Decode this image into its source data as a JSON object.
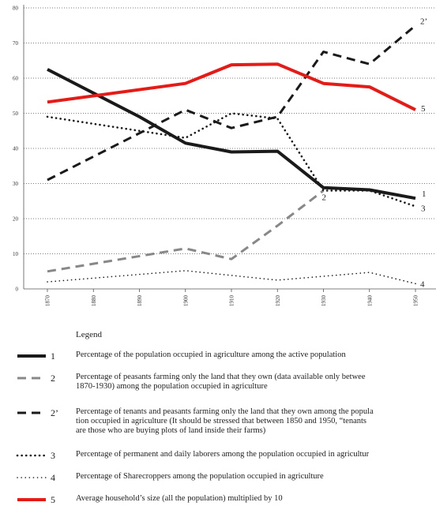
{
  "chart_data": {
    "type": "line",
    "x": [
      1870,
      1880,
      1890,
      1900,
      1910,
      1920,
      1930,
      1940,
      1950
    ],
    "xticks": [
      "1870",
      "1880",
      "1890",
      "1900",
      "1910",
      "1920",
      "1930",
      "1940",
      "1950"
    ],
    "yticks": [
      "0",
      "10",
      "20",
      "30",
      "40",
      "50",
      "60",
      "70",
      "80"
    ],
    "ylim": [
      0,
      80
    ],
    "grid": "horizontal dotted",
    "series": [
      {
        "id": "1",
        "end_label": "1",
        "color": "#1a1a1a",
        "style": "solid-thick",
        "points": [
          [
            1870,
            62.5
          ],
          [
            1890,
            49
          ],
          [
            1900,
            41.5
          ],
          [
            1910,
            39
          ],
          [
            1920,
            39.2
          ],
          [
            1930,
            28.8
          ],
          [
            1940,
            28.2
          ],
          [
            1950,
            25.8
          ]
        ]
      },
      {
        "id": "2",
        "end_label": "2",
        "color": "#888888",
        "style": "dashed-gray",
        "points": [
          [
            1870,
            5
          ],
          [
            1900,
            11.5
          ],
          [
            1910,
            8.5
          ],
          [
            1920,
            18
          ],
          [
            1930,
            28
          ]
        ]
      },
      {
        "id": "2p",
        "end_label": "2’",
        "color": "#1a1a1a",
        "style": "dashed",
        "points": [
          [
            1870,
            31
          ],
          [
            1900,
            51
          ],
          [
            1910,
            45.8
          ],
          [
            1920,
            49
          ],
          [
            1930,
            67.5
          ],
          [
            1940,
            64
          ],
          [
            1950,
            75
          ]
        ]
      },
      {
        "id": "3",
        "end_label": "3",
        "color": "#1a1a1a",
        "style": "dotted-thick",
        "points": [
          [
            1870,
            49
          ],
          [
            1900,
            43
          ],
          [
            1910,
            50
          ],
          [
            1920,
            48.5
          ],
          [
            1930,
            28
          ],
          [
            1940,
            28
          ],
          [
            1950,
            23.5
          ]
        ]
      },
      {
        "id": "4",
        "end_label": "4",
        "color": "#1a1a1a",
        "style": "dotted-thin",
        "points": [
          [
            1870,
            2
          ],
          [
            1900,
            5.2
          ],
          [
            1920,
            2.5
          ],
          [
            1940,
            4.7
          ],
          [
            1950,
            1.5
          ]
        ]
      },
      {
        "id": "5",
        "end_label": "5",
        "color": "#e41b17",
        "style": "solid-red",
        "points": [
          [
            1870,
            53.2
          ],
          [
            1900,
            58.5
          ],
          [
            1910,
            63.8
          ],
          [
            1920,
            64
          ],
          [
            1930,
            58.5
          ],
          [
            1940,
            57.5
          ],
          [
            1950,
            51
          ]
        ]
      }
    ]
  },
  "legend": {
    "title": "Legend",
    "items": [
      {
        "num": "1",
        "style": "solid-thick",
        "text": "Percentage of the population occupied in agriculture among the active population"
      },
      {
        "num": "2",
        "style": "dashed-gray",
        "text": "Percentage of peasants farming only the land that they own (data available only betwee\n1870-1930) among the population occupied in agriculture"
      },
      {
        "num": "2’",
        "style": "dashed",
        "text": "Percentage of tenants and peasants farming only the land that they own among the popula\ntion occupied in agriculture (It should be stressed that between 1850 and 1950, “tenants\nare those who are buying plots of land inside their farms)"
      },
      {
        "num": "3",
        "style": "dotted-thick",
        "text": "Percentage of permanent and daily laborers among the population occupied in agricultur"
      },
      {
        "num": "4",
        "style": "dotted-thin",
        "text": "Percentage of Sharecroppers among the population occupied in agriculture"
      },
      {
        "num": "5",
        "style": "solid-red",
        "text": "Average household’s size (all the population) multiplied by 10"
      }
    ]
  }
}
